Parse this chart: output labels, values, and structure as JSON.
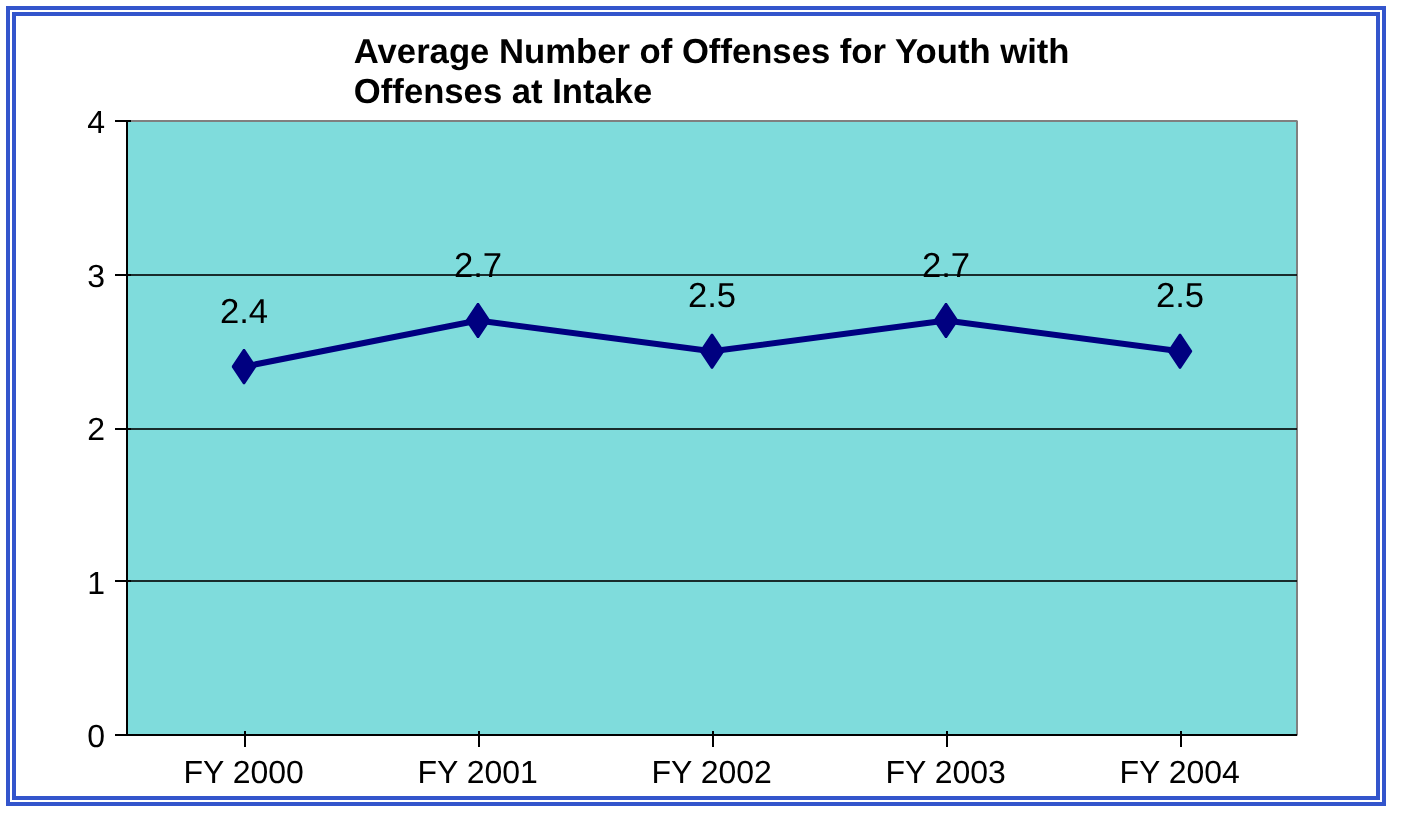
{
  "chart_data": {
    "type": "line",
    "title": "Average Number of Offenses for Youth with Offenses at Intake",
    "categories": [
      "FY 2000",
      "FY 2001",
      "FY 2002",
      "FY 2003",
      "FY 2004"
    ],
    "series": [
      {
        "color": "#000080",
        "values": [
          2.4,
          2.7,
          2.5,
          2.7,
          2.5
        ]
      }
    ],
    "ylim": [
      0,
      4
    ],
    "yticks": [
      0,
      1,
      2,
      3,
      4
    ],
    "grid": "y",
    "marker": "diamond",
    "line_style": "solid",
    "data_labels": true
  }
}
